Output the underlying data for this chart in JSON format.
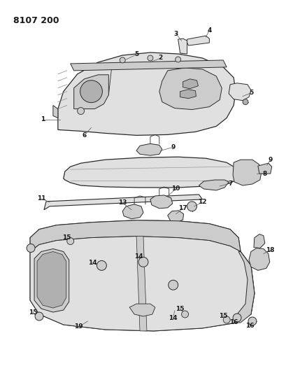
{
  "title": "8107 200",
  "bg": "#ffffff",
  "lc": "#2a2a2a",
  "tc": "#1a1a1a",
  "fw": 4.1,
  "fh": 5.33,
  "dpi": 100,
  "gray1": "#e0e0e0",
  "gray2": "#cccccc",
  "gray3": "#b0b0b0",
  "gray4": "#989898"
}
